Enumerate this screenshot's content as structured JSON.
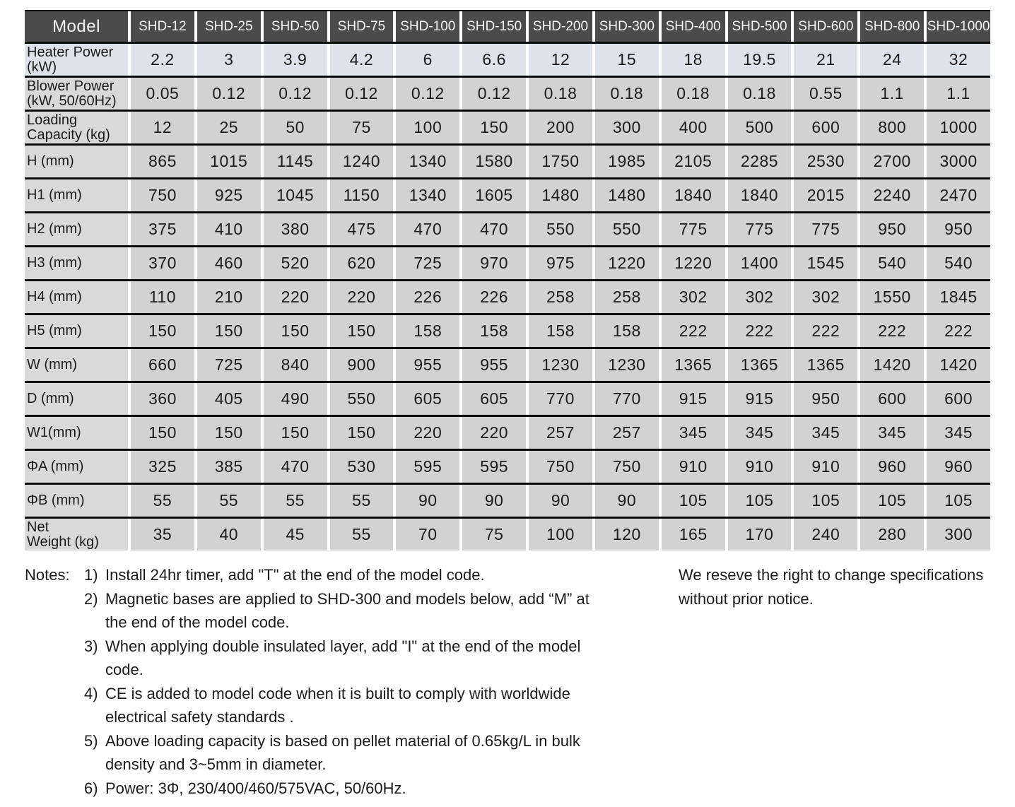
{
  "table": {
    "header": {
      "model_label": "Model",
      "columns": [
        "SHD-12",
        "SHD-25",
        "SHD-50",
        "SHD-75",
        "SHD-100",
        "SHD-150",
        "SHD-200",
        "SHD-300",
        "SHD-400",
        "SHD-500",
        "SHD-600",
        "SHD-800",
        "SHD-1000"
      ]
    },
    "rows": [
      {
        "name": "heater-power",
        "highlight": true,
        "label_lines": [
          "Heater Power",
          "(kW)"
        ],
        "values": [
          "2.2",
          "3",
          "3.9",
          "4.2",
          "6",
          "6.6",
          "12",
          "15",
          "18",
          "19.5",
          "21",
          "24",
          "32"
        ]
      },
      {
        "name": "blower-power",
        "label_lines": [
          "Blower Power",
          "(kW, 50/60Hz)"
        ],
        "values": [
          "0.05",
          "0.12",
          "0.12",
          "0.12",
          "0.12",
          "0.12",
          "0.18",
          "0.18",
          "0.18",
          "0.18",
          "0.55",
          "1.1",
          "1.1"
        ]
      },
      {
        "name": "loading-capacity",
        "label_lines": [
          "Loading",
          "Capacity (kg)"
        ],
        "values": [
          "12",
          "25",
          "50",
          "75",
          "100",
          "150",
          "200",
          "300",
          "400",
          "500",
          "600",
          "800",
          "1000"
        ]
      },
      {
        "name": "h",
        "label_lines": [
          "H (mm)"
        ],
        "values": [
          "865",
          "1015",
          "1145",
          "1240",
          "1340",
          "1580",
          "1750",
          "1985",
          "2105",
          "2285",
          "2530",
          "2700",
          "3000"
        ]
      },
      {
        "name": "h1",
        "label_lines": [
          "H1 (mm)"
        ],
        "values": [
          "750",
          "925",
          "1045",
          "1150",
          "1340",
          "1605",
          "1480",
          "1480",
          "1840",
          "1840",
          "2015",
          "2240",
          "2470"
        ]
      },
      {
        "name": "h2",
        "label_lines": [
          "H2 (mm)"
        ],
        "values": [
          "375",
          "410",
          "380",
          "475",
          "470",
          "470",
          "550",
          "550",
          "775",
          "775",
          "775",
          "950",
          "950"
        ]
      },
      {
        "name": "h3",
        "label_lines": [
          "H3 (mm)"
        ],
        "values": [
          "370",
          "460",
          "520",
          "620",
          "725",
          "970",
          "975",
          "1220",
          "1220",
          "1400",
          "1545",
          "540",
          "540"
        ]
      },
      {
        "name": "h4",
        "label_lines": [
          "H4 (mm)"
        ],
        "values": [
          "110",
          "210",
          "220",
          "220",
          "226",
          "226",
          "258",
          "258",
          "302",
          "302",
          "302",
          "1550",
          "1845"
        ]
      },
      {
        "name": "h5",
        "label_lines": [
          "H5 (mm)"
        ],
        "values": [
          "150",
          "150",
          "150",
          "150",
          "158",
          "158",
          "158",
          "158",
          "222",
          "222",
          "222",
          "222",
          "222"
        ]
      },
      {
        "name": "w",
        "label_lines": [
          "W (mm)"
        ],
        "values": [
          "660",
          "725",
          "840",
          "900",
          "955",
          "955",
          "1230",
          "1230",
          "1365",
          "1365",
          "1365",
          "1420",
          "1420"
        ]
      },
      {
        "name": "d",
        "label_lines": [
          "D (mm)"
        ],
        "values": [
          "360",
          "405",
          "490",
          "550",
          "605",
          "605",
          "770",
          "770",
          "915",
          "915",
          "950",
          "600",
          "600"
        ]
      },
      {
        "name": "w1",
        "label_lines": [
          "W1(mm)"
        ],
        "values": [
          "150",
          "150",
          "150",
          "150",
          "220",
          "220",
          "257",
          "257",
          "345",
          "345",
          "345",
          "345",
          "345"
        ]
      },
      {
        "name": "phi-a",
        "label_lines": [
          "ΦA (mm)"
        ],
        "values": [
          "325",
          "385",
          "470",
          "530",
          "595",
          "595",
          "750",
          "750",
          "910",
          "910",
          "910",
          "960",
          "960"
        ]
      },
      {
        "name": "phi-b",
        "label_lines": [
          "ΦB (mm)"
        ],
        "values": [
          "55",
          "55",
          "55",
          "55",
          "90",
          "90",
          "90",
          "90",
          "105",
          "105",
          "105",
          "105",
          "105"
        ]
      },
      {
        "name": "net-weight",
        "label_lines": [
          "Net",
          "Weight (kg)"
        ],
        "values": [
          "35",
          "40",
          "45",
          "55",
          "70",
          "75",
          "100",
          "120",
          "165",
          "170",
          "240",
          "280",
          "300"
        ]
      }
    ]
  },
  "notes": {
    "label": "Notes:",
    "items": [
      {
        "num": "1)",
        "lines": [
          "Install 24hr timer, add \"T\" at the end of the model code."
        ]
      },
      {
        "num": "2)",
        "lines": [
          "Magnetic bases are applied to SHD-300 and models below, add “M” at",
          "the end of the model code."
        ]
      },
      {
        "num": "3)",
        "lines": [
          "When applying double insulated layer, add \"I\" at the end of the model",
          "code."
        ]
      },
      {
        "num": "4)",
        "lines": [
          "CE is added to model code when it is built to comply with worldwide",
          "electrical safety standards ."
        ]
      },
      {
        "num": "5)",
        "lines": [
          "Above loading capacity is based on pellet material of 0.65kg/L in bulk",
          "density and 3~5mm in diameter."
        ]
      },
      {
        "num": "6)",
        "lines": [
          "Power: 3Φ, 230/400/460/575VAC, 50/60Hz."
        ]
      }
    ],
    "side_note_lines": [
      "We reseve the right to change specifications",
      "without prior notice."
    ]
  },
  "colors": {
    "header_bg": "#4b4b4b",
    "header_fg": "#f4f4f4",
    "row_bg": "#d2d2d2",
    "row_label_bg": "#d9d9d9",
    "highlight_row_bg": "#dee2e9",
    "rule": "#0d0d0d",
    "text": "#1c1c1c"
  }
}
